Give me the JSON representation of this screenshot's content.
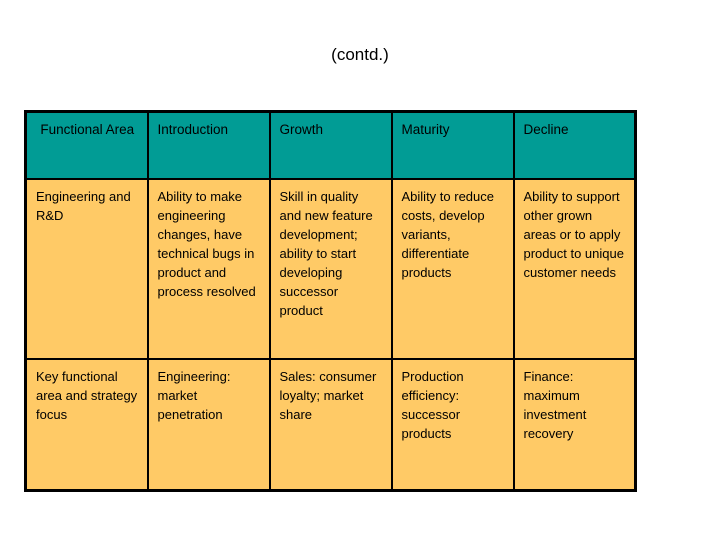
{
  "title": "(contd.)",
  "colors": {
    "header_bg": "#019C95",
    "body_bg": "#FFCA66",
    "border": "#000000",
    "text": "#000000",
    "page_bg": "#FFFFFF"
  },
  "table": {
    "headers": [
      "Functional Area",
      "Introduction",
      "Growth",
      "Maturity",
      "Decline"
    ],
    "rows": [
      [
        "Engineering and R&D",
        "Ability to make engineering changes, have technical bugs in product and process resolved",
        "Skill in quality and new feature development; ability to start developing successor product",
        "Ability to reduce costs, develop variants, differentiate products",
        "Ability to support other grown areas or to apply product to unique customer needs"
      ],
      [
        "Key functional area and strategy focus",
        "Engineering: market penetration",
        "Sales: consumer loyalty; market share",
        "Production efficiency: successor products",
        "Finance: maximum investment recovery"
      ]
    ]
  }
}
